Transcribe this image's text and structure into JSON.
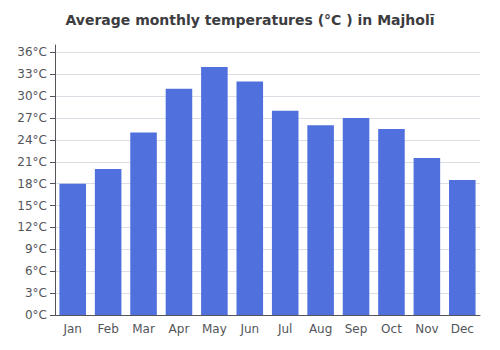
{
  "chart_data": {
    "type": "bar",
    "title": "Average monthly temperatures (°C ) in Majholī",
    "categories": [
      "Jan",
      "Feb",
      "Mar",
      "Apr",
      "May",
      "Jun",
      "Jul",
      "Aug",
      "Sep",
      "Oct",
      "Nov",
      "Dec"
    ],
    "values": [
      18.0,
      20.0,
      25.0,
      31.0,
      34.0,
      32.0,
      28.0,
      26.0,
      27.0,
      25.5,
      21.5,
      18.5
    ],
    "ylim": [
      0,
      37
    ],
    "yticks": [
      {
        "value": 0,
        "label": "0°C"
      },
      {
        "value": 3,
        "label": "3°C"
      },
      {
        "value": 6,
        "label": "6°C"
      },
      {
        "value": 9,
        "label": "9°C"
      },
      {
        "value": 12,
        "label": "12°C"
      },
      {
        "value": 15,
        "label": "15°C"
      },
      {
        "value": 18,
        "label": "18°C"
      },
      {
        "value": 21,
        "label": "21°C"
      },
      {
        "value": 24,
        "label": "24°C"
      },
      {
        "value": 27,
        "label": "27°C"
      },
      {
        "value": 30,
        "label": "30°C"
      },
      {
        "value": 33,
        "label": "33°C"
      },
      {
        "value": 36,
        "label": "36°C"
      }
    ],
    "grid": true
  }
}
